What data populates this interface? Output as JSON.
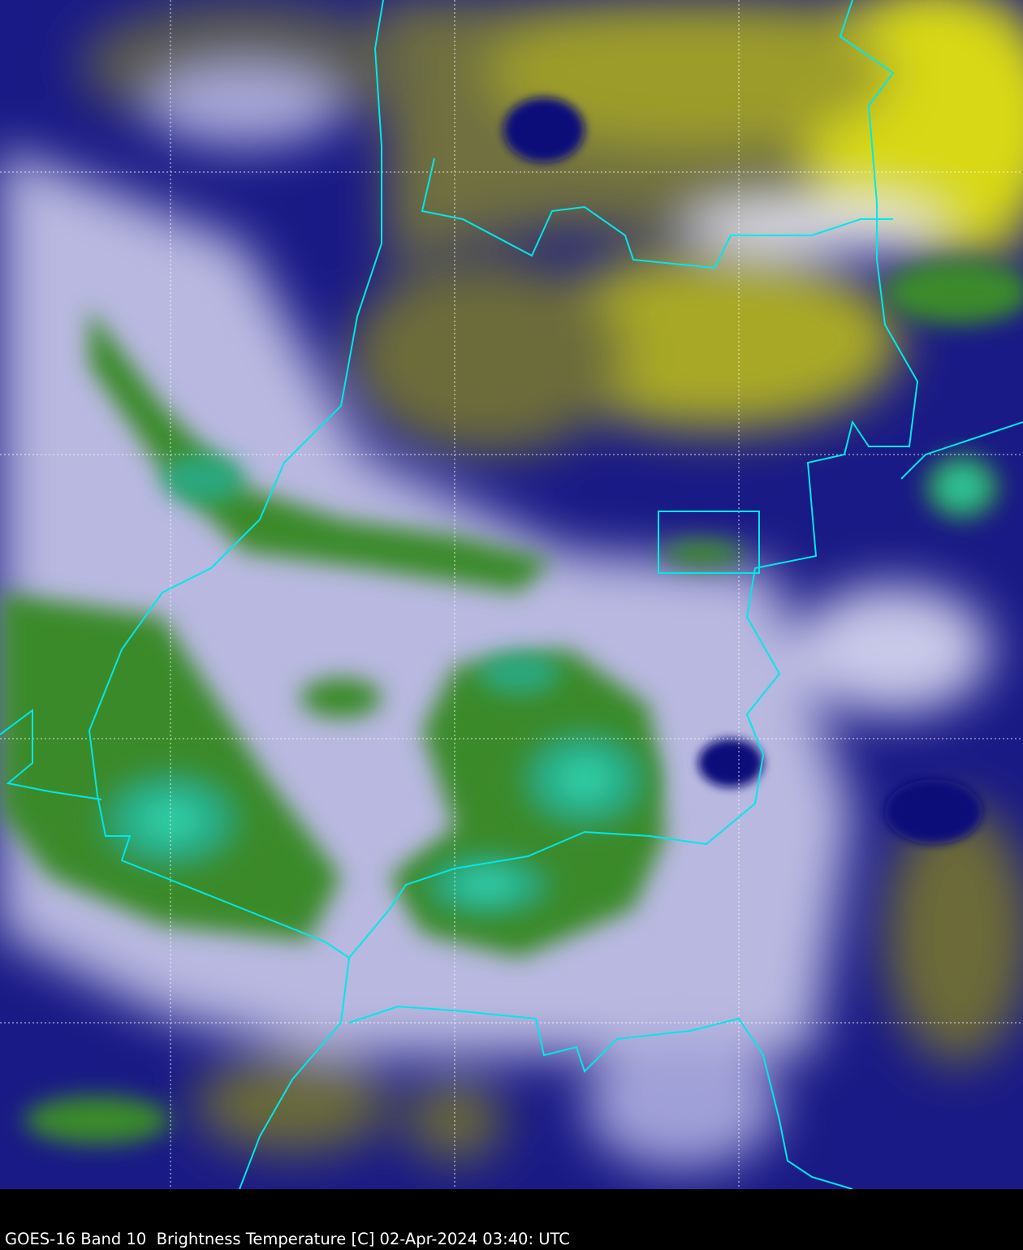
{
  "caption": "GOES-16 Band 10  Brightness Temperature [C] 02-Apr-2024 03:40: UTC",
  "colors": {
    "warm_clear": "#d8d810",
    "mid": "#555555",
    "cold_cloud": "#0a0a8a",
    "colder_cloud": "#e8e8f8",
    "coldest_green": "#3a8a2a",
    "coldest_teal": "#30d0a8",
    "borders": "#00e8e8",
    "graticule": "#ffffff"
  }
}
